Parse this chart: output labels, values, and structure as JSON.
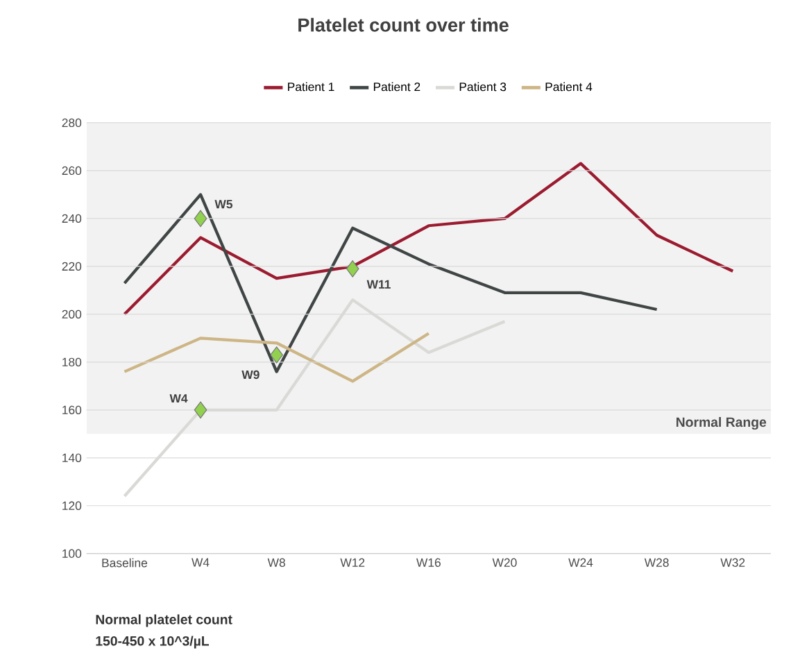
{
  "chart_data": {
    "type": "line",
    "title": "Platelet count over time",
    "categories": [
      "Baseline",
      "W4",
      "W8",
      "W12",
      "W16",
      "W20",
      "W24",
      "W28",
      "W32"
    ],
    "ylim": [
      100,
      280
    ],
    "yticks": [
      100,
      120,
      140,
      160,
      180,
      200,
      220,
      240,
      260,
      280
    ],
    "grid": "y",
    "legend": "top",
    "series": [
      {
        "name": "Patient 1",
        "color": "#9b1b30",
        "values": [
          200,
          232,
          215,
          220,
          237,
          240,
          263,
          233,
          218
        ]
      },
      {
        "name": "Patient 2",
        "color": "#404545",
        "values": [
          213,
          250,
          176,
          236,
          221,
          209,
          209,
          202,
          null
        ]
      },
      {
        "name": "Patient 3",
        "color": "#d9d9d6",
        "values": [
          124,
          160,
          160,
          206,
          184,
          197,
          null,
          null,
          null
        ]
      },
      {
        "name": "Patient 4",
        "color": "#cdb585",
        "values": [
          176,
          190,
          188,
          172,
          192,
          null,
          null,
          null,
          null
        ]
      },
      {
        "type": "scatter",
        "color": "#92d050",
        "marker": "diamond",
        "values": [
          null,
          160,
          183,
          219,
          null,
          null,
          null,
          null,
          null
        ],
        "value_labels": [
          null,
          "W4",
          "W9",
          "W11",
          null,
          null,
          null,
          null,
          null
        ]
      },
      {
        "type": "scatter",
        "color": "#92d050",
        "marker": "diamond",
        "values": [
          null,
          240,
          null,
          null,
          null,
          null,
          null,
          null,
          null
        ],
        "value_labels": [
          null,
          "W5",
          null,
          null,
          null,
          null,
          null,
          null,
          null
        ]
      }
    ],
    "bands": [
      {
        "axis": "y",
        "from": 150,
        "to": 280,
        "label": "Normal Range",
        "color": "#f2f2f2"
      }
    ],
    "annotations": [
      "Normal platelet count",
      "150-450 x 10^3/µL"
    ]
  }
}
